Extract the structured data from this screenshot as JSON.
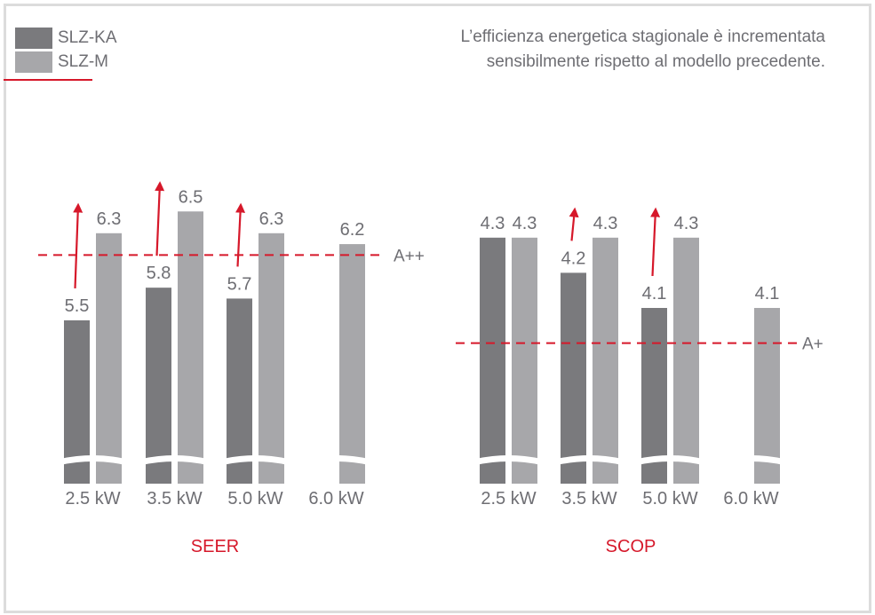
{
  "colors": {
    "old_model": "#7a7a7d",
    "new_model": "#a7a7aa",
    "accent": "#d6182a",
    "text": "#6e6e73"
  },
  "legend": {
    "items": [
      {
        "label": "SLZ-KA",
        "color": "#7a7a7d"
      },
      {
        "label": "SLZ-M",
        "color": "#a7a7aa"
      }
    ]
  },
  "note": {
    "line1": "L’efficienza energetica stagionale è incrementata",
    "line2": "sensibilmente rispetto al modello precedente."
  },
  "chart_data": [
    {
      "type": "bar",
      "title": "SEER",
      "categories": [
        "2.5 kW",
        "3.5 kW",
        "5.0 kW",
        "6.0 kW"
      ],
      "series": [
        {
          "name": "SLZ-KA",
          "values": [
            5.5,
            5.8,
            5.7,
            null
          ],
          "labels": [
            "5.5",
            "5.8",
            "5.7",
            ""
          ]
        },
        {
          "name": "SLZ-M",
          "values": [
            6.3,
            6.5,
            6.3,
            6.2
          ],
          "labels": [
            "6.3",
            "6.5",
            "6.3",
            "6.2"
          ]
        }
      ],
      "axis_break": true,
      "ylim": [
        4.0,
        6.6
      ],
      "reference_line": {
        "label": "A++",
        "value": 6.1,
        "style": "dashed"
      },
      "improvement_arrows": [
        0,
        1,
        2
      ]
    },
    {
      "type": "bar",
      "title": "SCOP",
      "categories": [
        "2.5 kW",
        "3.5 kW",
        "5.0 kW",
        "6.0 kW"
      ],
      "series": [
        {
          "name": "SLZ-KA",
          "values": [
            4.3,
            4.2,
            4.1,
            null
          ],
          "labels": [
            "4.3",
            "4.2",
            "4.1",
            ""
          ]
        },
        {
          "name": "SLZ-M",
          "values": [
            4.3,
            4.3,
            4.3,
            4.1
          ],
          "labels": [
            "4.3",
            "4.3",
            "4.3",
            "4.1"
          ]
        }
      ],
      "axis_break": true,
      "ylim": [
        3.6,
        4.35
      ],
      "reference_line": {
        "label": "A+",
        "value": 4.0,
        "style": "dashed"
      },
      "improvement_arrows": [
        1,
        2
      ]
    }
  ]
}
